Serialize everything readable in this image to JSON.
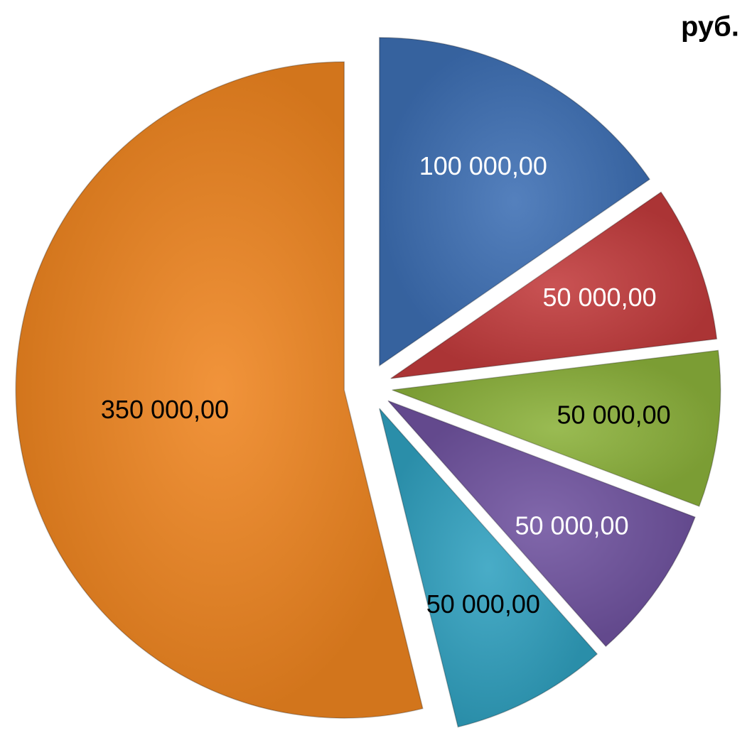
{
  "chart_data": {
    "type": "pie",
    "title": "руб.",
    "values": [
      100000,
      50000,
      50000,
      50000,
      50000,
      350000
    ],
    "value_labels": [
      "100 000,00",
      "50 000,00",
      "50 000,00",
      "50 000,00",
      "50 000,00",
      "350 000,00"
    ],
    "colors": [
      "#3d6fb4",
      "#c23b3c",
      "#8cb23b",
      "#7053a0",
      "#30a1c0",
      "#ef8520"
    ],
    "label_colors": [
      "#ffffff",
      "#ffffff",
      "#000000",
      "#ffffff",
      "#000000",
      "#000000"
    ]
  }
}
